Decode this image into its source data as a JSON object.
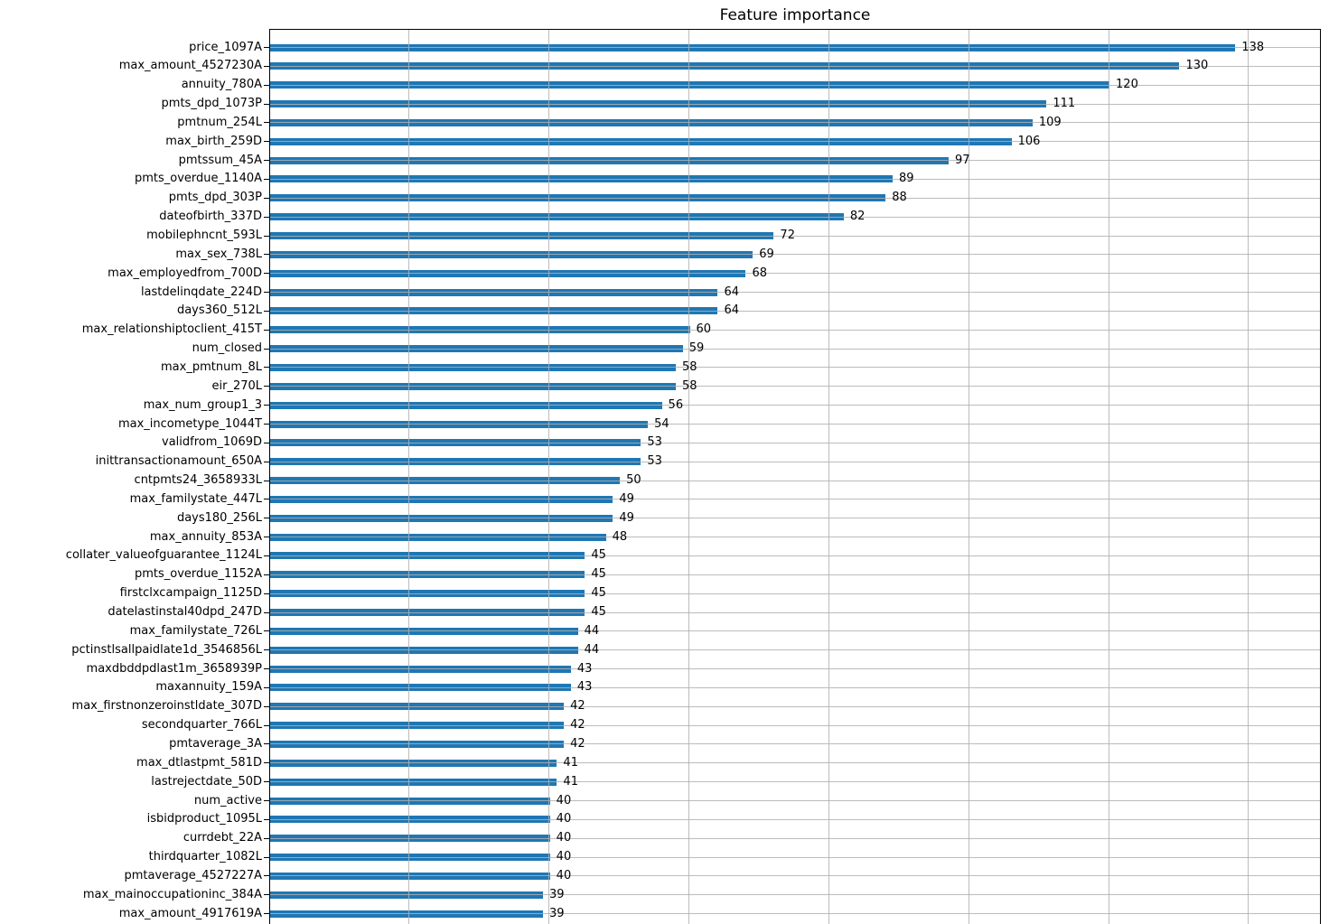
{
  "chart_data": {
    "type": "bar",
    "orientation": "horizontal",
    "title": "Feature importance",
    "categories": [
      "price_1097A",
      "max_amount_4527230A",
      "annuity_780A",
      "pmts_dpd_1073P",
      "pmtnum_254L",
      "max_birth_259D",
      "pmtssum_45A",
      "pmts_overdue_1140A",
      "pmts_dpd_303P",
      "dateofbirth_337D",
      "mobilephncnt_593L",
      "max_sex_738L",
      "max_employedfrom_700D",
      "lastdelinqdate_224D",
      "days360_512L",
      "max_relationshiptoclient_415T",
      "num_closed",
      "max_pmtnum_8L",
      "eir_270L",
      "max_num_group1_3",
      "max_incometype_1044T",
      "validfrom_1069D",
      "inittransactionamount_650A",
      "cntpmts24_3658933L",
      "max_familystate_447L",
      "days180_256L",
      "max_annuity_853A",
      "collater_valueofguarantee_1124L",
      "pmts_overdue_1152A",
      "firstclxcampaign_1125D",
      "datelastinstal40dpd_247D",
      "max_familystate_726L",
      "pctinstlsallpaidlate1d_3546856L",
      "maxdbddpdlast1m_3658939P",
      "maxannuity_159A",
      "max_firstnonzeroinstldate_307D",
      "secondquarter_766L",
      "pmtaverage_3A",
      "max_dtlastpmt_581D",
      "lastrejectdate_50D",
      "num_active",
      "isbidproduct_1095L",
      "currdebt_22A",
      "thirdquarter_1082L",
      "pmtaverage_4527227A",
      "max_mainoccupationinc_384A",
      "max_amount_4917619A"
    ],
    "values": [
      138,
      130,
      120,
      111,
      109,
      106,
      97,
      89,
      88,
      82,
      72,
      69,
      68,
      64,
      64,
      60,
      59,
      58,
      58,
      56,
      54,
      53,
      53,
      50,
      49,
      49,
      48,
      45,
      45,
      45,
      45,
      44,
      44,
      43,
      43,
      42,
      42,
      42,
      41,
      41,
      40,
      40,
      40,
      40,
      40,
      39,
      39
    ],
    "value_labels_shown": true,
    "xlim": [
      0,
      150
    ],
    "x_gridline_interval": 20,
    "grid": true,
    "bar_color": "#1f77b4",
    "gridline_color": "#b2b2b2",
    "spine_color": "#000000"
  }
}
